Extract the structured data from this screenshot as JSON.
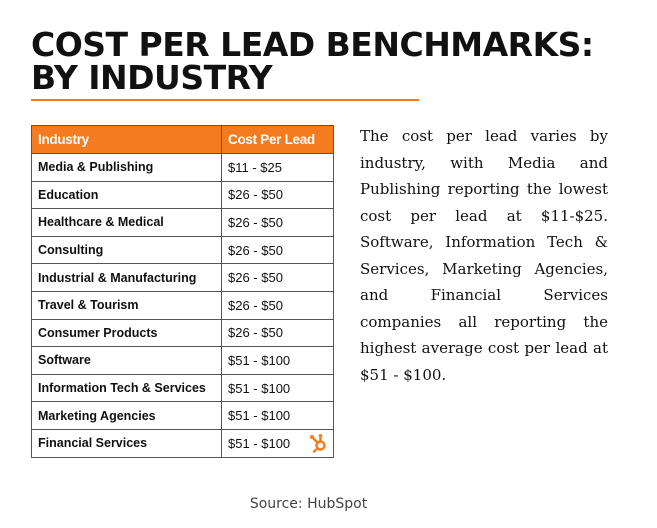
{
  "title": {
    "line1": "COST PER LEAD BENCHMARKS:",
    "line2": "BY INDUSTRY"
  },
  "colors": {
    "accent": "#f47b20",
    "text": "#111111",
    "border": "#555555"
  },
  "table": {
    "headers": [
      "Industry",
      "Cost Per Lead"
    ],
    "rows": [
      {
        "industry": "Media & Publishing",
        "cost": "$11 - $25"
      },
      {
        "industry": "Education",
        "cost": "$26 - $50"
      },
      {
        "industry": "Healthcare & Medical",
        "cost": "$26 - $50"
      },
      {
        "industry": "Consulting",
        "cost": "$26 - $50"
      },
      {
        "industry": "Industrial & Manufacturing",
        "cost": "$26 - $50"
      },
      {
        "industry": "Travel & Tourism",
        "cost": "$26 - $50"
      },
      {
        "industry": "Consumer Products",
        "cost": "$26 - $50"
      },
      {
        "industry": "Software",
        "cost": "$51 - $100"
      },
      {
        "industry": "Information Tech & Services",
        "cost": "$51 - $100"
      },
      {
        "industry": "Marketing Agencies",
        "cost": "$51 - $100"
      },
      {
        "industry": "Financial Services",
        "cost": "$51 - $100"
      }
    ],
    "logo_icon": "hubspot-sprocket-icon"
  },
  "paragraph": "The cost per lead varies by industry, with Media and Publishing reporting the lowest cost per lead at $11-$25. Software, Information Tech & Services, Marketing Agencies, and Financial Services companies all reporting the highest average cost per lead at $51 - $100.",
  "source": "Source: HubSpot"
}
